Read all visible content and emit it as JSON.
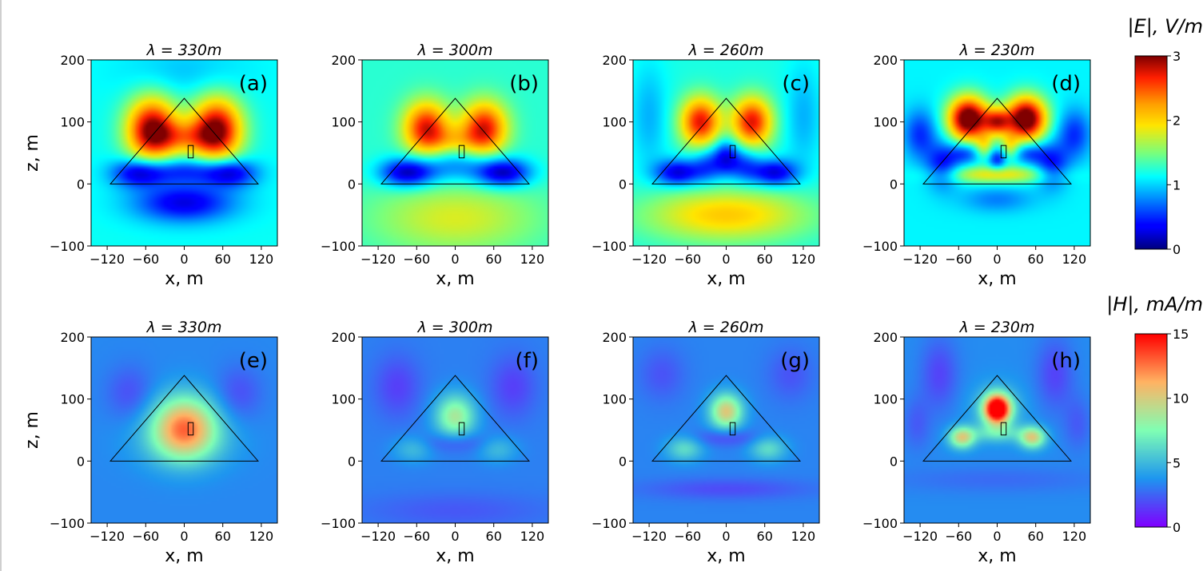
{
  "figure": {
    "rows": [
      {
        "quantity": "E",
        "colorbar_title": "|E|, V/m",
        "colormap": "jet",
        "colorbar_ticks": [
          "0",
          "1",
          "2",
          "3"
        ],
        "range": [
          0,
          3
        ]
      },
      {
        "quantity": "H",
        "colorbar_title": "|H|, mA/m",
        "colormap": "rainbow",
        "colorbar_ticks": [
          "0",
          "5",
          "10",
          "15"
        ],
        "range": [
          0,
          15
        ]
      }
    ]
  },
  "chart_data": [
    {
      "type": "heatmap",
      "panel": "a",
      "panel_label": "(a)",
      "title": "λ = 330m",
      "quantity": "E",
      "colormap": "jet",
      "xlabel": "x, m",
      "ylabel": "z, m",
      "xlim": [
        -145,
        145
      ],
      "ylim": [
        -100,
        200
      ],
      "xticks": [
        -120,
        -60,
        0,
        60,
        120
      ],
      "xtick_labels": [
        "−120",
        "−60",
        "0",
        "60",
        "120"
      ],
      "yticks": [
        -100,
        0,
        100,
        200
      ],
      "ytick_labels": [
        "−100",
        "0",
        "100",
        "200"
      ],
      "grid": false,
      "triangle": [
        [
          -115,
          0
        ],
        [
          0,
          138
        ],
        [
          115,
          0
        ]
      ],
      "box": {
        "x": [
          6,
          14
        ],
        "z": [
          42,
          62
        ]
      },
      "field": {
        "background": 1.15,
        "blobs": [
          {
            "x": -50,
            "z": 88,
            "sx": 28,
            "sz": 36,
            "v": 1.85
          },
          {
            "x": 50,
            "z": 88,
            "sx": 28,
            "sz": 36,
            "v": 1.85
          },
          {
            "x": 0,
            "z": 75,
            "sx": 35,
            "sz": 18,
            "v": 0.65
          },
          {
            "x": -70,
            "z": 18,
            "sx": 30,
            "sz": 16,
            "v": -0.95
          },
          {
            "x": 70,
            "z": 18,
            "sx": 30,
            "sz": 16,
            "v": -0.95
          },
          {
            "x": 0,
            "z": 22,
            "sx": 40,
            "sz": 14,
            "v": -0.6
          },
          {
            "x": 0,
            "z": -30,
            "sx": 55,
            "sz": 22,
            "v": -0.9
          },
          {
            "x": 0,
            "z": 180,
            "sx": 70,
            "sz": 30,
            "v": -0.2
          }
        ]
      }
    },
    {
      "type": "heatmap",
      "panel": "b",
      "panel_label": "(b)",
      "title": "λ = 300m",
      "quantity": "E",
      "colormap": "jet",
      "xlabel": "x, m",
      "ylabel": "",
      "xlim": [
        -145,
        145
      ],
      "ylim": [
        -100,
        200
      ],
      "xticks": [
        -120,
        -60,
        0,
        60,
        120
      ],
      "xtick_labels": [
        "−120",
        "−60",
        "0",
        "60",
        "120"
      ],
      "yticks": [
        -100,
        0,
        100,
        200
      ],
      "ytick_labels": [
        "−100",
        "0",
        "100",
        "200"
      ],
      "grid": false,
      "triangle": [
        [
          -115,
          0
        ],
        [
          0,
          138
        ],
        [
          115,
          0
        ]
      ],
      "box": {
        "x": [
          6,
          14
        ],
        "z": [
          42,
          62
        ]
      },
      "field": {
        "background": 1.25,
        "blobs": [
          {
            "x": -45,
            "z": 90,
            "sx": 25,
            "sz": 30,
            "v": 1.5
          },
          {
            "x": 45,
            "z": 90,
            "sx": 25,
            "sz": 30,
            "v": 1.5
          },
          {
            "x": 0,
            "z": 70,
            "sx": 30,
            "sz": 16,
            "v": 0.45
          },
          {
            "x": -75,
            "z": 18,
            "sx": 30,
            "sz": 16,
            "v": -1.1
          },
          {
            "x": 75,
            "z": 18,
            "sx": 30,
            "sz": 16,
            "v": -1.1
          },
          {
            "x": 0,
            "z": 30,
            "sx": 45,
            "sz": 20,
            "v": -0.5
          },
          {
            "x": 0,
            "z": -55,
            "sx": 90,
            "sz": 40,
            "v": 0.55
          }
        ]
      }
    },
    {
      "type": "heatmap",
      "panel": "c",
      "panel_label": "(c)",
      "title": "λ = 260m",
      "quantity": "E",
      "colormap": "jet",
      "xlabel": "x, m",
      "ylabel": "",
      "xlim": [
        -145,
        145
      ],
      "ylim": [
        -100,
        200
      ],
      "xticks": [
        -120,
        -60,
        0,
        60,
        120
      ],
      "xtick_labels": [
        "−120",
        "−60",
        "0",
        "60",
        "120"
      ],
      "yticks": [
        -100,
        0,
        100,
        200
      ],
      "ytick_labels": [
        "−100",
        "0",
        "100",
        "200"
      ],
      "grid": false,
      "triangle": [
        [
          -115,
          0
        ],
        [
          0,
          138
        ],
        [
          115,
          0
        ]
      ],
      "box": {
        "x": [
          6,
          14
        ],
        "z": [
          42,
          62
        ]
      },
      "field": {
        "background": 1.2,
        "blobs": [
          {
            "x": -40,
            "z": 100,
            "sx": 22,
            "sz": 28,
            "v": 1.55
          },
          {
            "x": 40,
            "z": 100,
            "sx": 22,
            "sz": 28,
            "v": 1.55
          },
          {
            "x": -75,
            "z": 18,
            "sx": 25,
            "sz": 15,
            "v": -1.0
          },
          {
            "x": 75,
            "z": 18,
            "sx": 25,
            "sz": 15,
            "v": -1.0
          },
          {
            "x": -28,
            "z": 30,
            "sx": 18,
            "sz": 20,
            "v": -0.6
          },
          {
            "x": 28,
            "z": 30,
            "sx": 18,
            "sz": 20,
            "v": -0.6
          },
          {
            "x": 0,
            "z": 45,
            "sx": 14,
            "sz": 20,
            "v": -0.75
          },
          {
            "x": 0,
            "z": -50,
            "sx": 90,
            "sz": 30,
            "v": 0.85
          },
          {
            "x": -120,
            "z": 110,
            "sx": 20,
            "sz": 60,
            "v": -0.3
          },
          {
            "x": 120,
            "z": 110,
            "sx": 20,
            "sz": 60,
            "v": -0.3
          }
        ]
      }
    },
    {
      "type": "heatmap",
      "panel": "d",
      "panel_label": "(d)",
      "title": "λ = 230m",
      "quantity": "E",
      "colormap": "jet",
      "xlabel": "x, m",
      "ylabel": "",
      "xlim": [
        -145,
        145
      ],
      "ylim": [
        -100,
        200
      ],
      "xticks": [
        -120,
        -60,
        0,
        60,
        120
      ],
      "xtick_labels": [
        "−120",
        "−60",
        "0",
        "60",
        "120"
      ],
      "yticks": [
        -100,
        0,
        100,
        200
      ],
      "ytick_labels": [
        "−100",
        "0",
        "100",
        "200"
      ],
      "grid": false,
      "triangle": [
        [
          -115,
          0
        ],
        [
          0,
          138
        ],
        [
          115,
          0
        ]
      ],
      "box": {
        "x": [
          6,
          14
        ],
        "z": [
          42,
          62
        ]
      },
      "field": {
        "background": 1.1,
        "blobs": [
          {
            "x": -45,
            "z": 105,
            "sx": 22,
            "sz": 25,
            "v": 2.2
          },
          {
            "x": 45,
            "z": 105,
            "sx": 22,
            "sz": 25,
            "v": 2.2
          },
          {
            "x": 0,
            "z": 100,
            "sx": 15,
            "sz": 15,
            "v": 1.3
          },
          {
            "x": -50,
            "z": 50,
            "sx": 18,
            "sz": 12,
            "v": -0.6
          },
          {
            "x": 50,
            "z": 50,
            "sx": 18,
            "sz": 12,
            "v": -0.6
          },
          {
            "x": 0,
            "z": 40,
            "sx": 10,
            "sz": 12,
            "v": -0.7
          },
          {
            "x": -20,
            "z": 60,
            "sx": 10,
            "sz": 14,
            "v": 0.6
          },
          {
            "x": 20,
            "z": 60,
            "sx": 10,
            "sz": 14,
            "v": 0.6
          },
          {
            "x": 0,
            "z": 15,
            "sx": 60,
            "sz": 10,
            "v": 0.8
          },
          {
            "x": -85,
            "z": 30,
            "sx": 18,
            "sz": 25,
            "v": -0.7
          },
          {
            "x": 85,
            "z": 30,
            "sx": 18,
            "sz": 25,
            "v": -0.7
          },
          {
            "x": -120,
            "z": 80,
            "sx": 18,
            "sz": 28,
            "v": -0.6
          },
          {
            "x": 120,
            "z": 80,
            "sx": 18,
            "sz": 28,
            "v": -0.6
          },
          {
            "x": 0,
            "z": -25,
            "sx": 40,
            "sz": 15,
            "v": -0.35
          }
        ]
      }
    },
    {
      "type": "heatmap",
      "panel": "e",
      "panel_label": "(e)",
      "title": "λ = 330m",
      "quantity": "H",
      "colormap": "rainbow",
      "xlabel": "x, m",
      "ylabel": "z, m",
      "xlim": [
        -145,
        145
      ],
      "ylim": [
        -100,
        200
      ],
      "xticks": [
        -120,
        -60,
        0,
        60,
        120
      ],
      "xtick_labels": [
        "−120",
        "−60",
        "0",
        "60",
        "120"
      ],
      "yticks": [
        -100,
        0,
        100,
        200
      ],
      "ytick_labels": [
        "−100",
        "0",
        "100",
        "200"
      ],
      "grid": false,
      "triangle": [
        [
          -115,
          0
        ],
        [
          0,
          138
        ],
        [
          115,
          0
        ]
      ],
      "box": {
        "x": [
          6,
          14
        ],
        "z": [
          42,
          62
        ]
      },
      "field": {
        "background": 3.4,
        "blobs": [
          {
            "x": 0,
            "z": 55,
            "sx": 35,
            "sz": 35,
            "v": 8.5
          },
          {
            "x": 0,
            "z": 30,
            "sx": 55,
            "sz": 30,
            "v": 1.5
          },
          {
            "x": -85,
            "z": 110,
            "sx": 25,
            "sz": 30,
            "v": -1.4
          },
          {
            "x": 85,
            "z": 110,
            "sx": 25,
            "sz": 30,
            "v": -1.4
          }
        ]
      }
    },
    {
      "type": "heatmap",
      "panel": "f",
      "panel_label": "(f)",
      "title": "λ = 300m",
      "quantity": "H",
      "colormap": "rainbow",
      "xlabel": "x, m",
      "ylabel": "",
      "xlim": [
        -145,
        145
      ],
      "ylim": [
        -100,
        200
      ],
      "xticks": [
        -120,
        -60,
        0,
        60,
        120
      ],
      "xtick_labels": [
        "−120",
        "−60",
        "0",
        "60",
        "120"
      ],
      "yticks": [
        -100,
        0,
        100,
        200
      ],
      "ytick_labels": [
        "−100",
        "0",
        "100",
        "200"
      ],
      "grid": false,
      "triangle": [
        [
          -115,
          0
        ],
        [
          0,
          138
        ],
        [
          115,
          0
        ]
      ],
      "box": {
        "x": [
          6,
          14
        ],
        "z": [
          42,
          62
        ]
      },
      "field": {
        "background": 3.2,
        "blobs": [
          {
            "x": 0,
            "z": 72,
            "sx": 22,
            "sz": 25,
            "v": 5.5
          },
          {
            "x": 0,
            "z": 30,
            "sx": 40,
            "sz": 12,
            "v": -1.6
          },
          {
            "x": -65,
            "z": 20,
            "sx": 22,
            "sz": 15,
            "v": 2.0
          },
          {
            "x": 65,
            "z": 20,
            "sx": 22,
            "sz": 15,
            "v": 2.0
          },
          {
            "x": -90,
            "z": 120,
            "sx": 25,
            "sz": 35,
            "v": -1.6
          },
          {
            "x": 90,
            "z": 120,
            "sx": 25,
            "sz": 35,
            "v": -1.6
          },
          {
            "x": 0,
            "z": -80,
            "sx": 100,
            "sz": 20,
            "v": -1.0
          }
        ]
      }
    },
    {
      "type": "heatmap",
      "panel": "g",
      "panel_label": "(g)",
      "title": "λ = 260m",
      "quantity": "H",
      "colormap": "rainbow",
      "xlabel": "x, m",
      "ylabel": "",
      "xlim": [
        -145,
        145
      ],
      "ylim": [
        -100,
        200
      ],
      "xticks": [
        -120,
        -60,
        0,
        60,
        120
      ],
      "xtick_labels": [
        "−120",
        "−60",
        "0",
        "60",
        "120"
      ],
      "yticks": [
        -100,
        0,
        100,
        200
      ],
      "ytick_labels": [
        "−100",
        "0",
        "100",
        "200"
      ],
      "grid": false,
      "triangle": [
        [
          -115,
          0
        ],
        [
          0,
          138
        ],
        [
          115,
          0
        ]
      ],
      "box": {
        "x": [
          6,
          14
        ],
        "z": [
          42,
          62
        ]
      },
      "field": {
        "background": 3.3,
        "blobs": [
          {
            "x": 0,
            "z": 80,
            "sx": 18,
            "sz": 20,
            "v": 7.0
          },
          {
            "x": 0,
            "z": 38,
            "sx": 35,
            "sz": 10,
            "v": -1.7
          },
          {
            "x": -65,
            "z": 20,
            "sx": 20,
            "sz": 14,
            "v": 3.0
          },
          {
            "x": 65,
            "z": 20,
            "sx": 20,
            "sz": 14,
            "v": 3.0
          },
          {
            "x": 0,
            "z": -45,
            "sx": 90,
            "sz": 12,
            "v": -1.4
          },
          {
            "x": -100,
            "z": 140,
            "sx": 25,
            "sz": 30,
            "v": -1.2
          },
          {
            "x": 100,
            "z": 140,
            "sx": 25,
            "sz": 30,
            "v": -1.2
          }
        ]
      }
    },
    {
      "type": "heatmap",
      "panel": "h",
      "panel_label": "(h)",
      "title": "λ = 230m",
      "quantity": "H",
      "colormap": "rainbow",
      "xlabel": "x, m",
      "ylabel": "",
      "xlim": [
        -145,
        145
      ],
      "ylim": [
        -100,
        200
      ],
      "xticks": [
        -120,
        -60,
        0,
        60,
        120
      ],
      "xtick_labels": [
        "−120",
        "−60",
        "0",
        "60",
        "120"
      ],
      "yticks": [
        -100,
        0,
        100,
        200
      ],
      "ytick_labels": [
        "−100",
        "0",
        "100",
        "200"
      ],
      "grid": false,
      "triangle": [
        [
          -115,
          0
        ],
        [
          0,
          138
        ],
        [
          115,
          0
        ]
      ],
      "box": {
        "x": [
          6,
          14
        ],
        "z": [
          42,
          62
        ]
      },
      "field": {
        "background": 3.5,
        "blobs": [
          {
            "x": 0,
            "z": 84,
            "sx": 14,
            "sz": 16,
            "v": 14.0
          },
          {
            "x": 0,
            "z": 84,
            "sx": 28,
            "sz": 28,
            "v": 2.0
          },
          {
            "x": 0,
            "z": 45,
            "sx": 30,
            "sz": 10,
            "v": 2.5
          },
          {
            "x": -55,
            "z": 38,
            "sx": 14,
            "sz": 12,
            "v": 6.5
          },
          {
            "x": 55,
            "z": 38,
            "sx": 14,
            "sz": 12,
            "v": 6.5
          },
          {
            "x": -90,
            "z": 140,
            "sx": 20,
            "sz": 40,
            "v": -1.8
          },
          {
            "x": 90,
            "z": 140,
            "sx": 20,
            "sz": 40,
            "v": -1.8
          },
          {
            "x": -125,
            "z": 60,
            "sx": 15,
            "sz": 30,
            "v": -1.2
          },
          {
            "x": 125,
            "z": 60,
            "sx": 15,
            "sz": 30,
            "v": -1.2
          },
          {
            "x": 0,
            "z": -30,
            "sx": 120,
            "sz": 15,
            "v": -0.8
          }
        ]
      }
    }
  ]
}
